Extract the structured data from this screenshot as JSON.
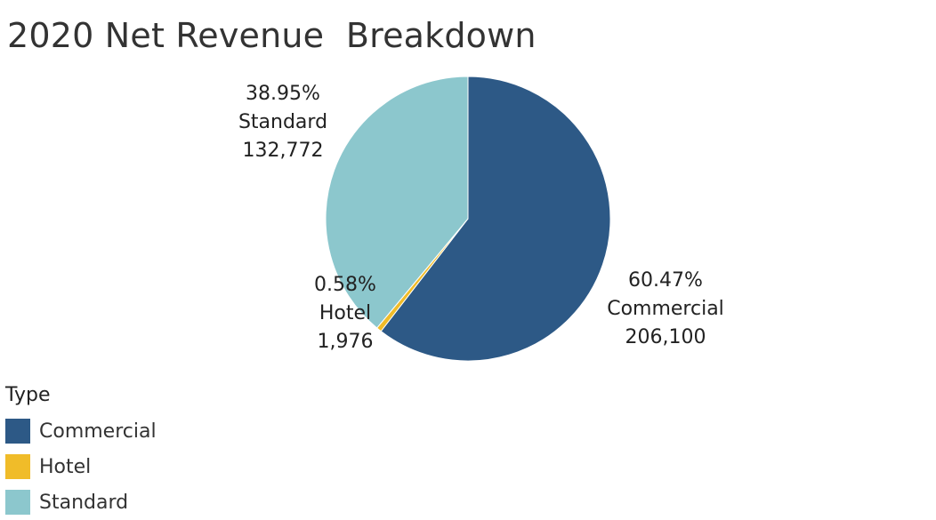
{
  "chart_data": {
    "type": "pie",
    "title": "2020 Net Revenue  Breakdown",
    "legend_title": "Type",
    "legend_placement": "bottom-left",
    "slices": [
      {
        "name": "Commercial",
        "value": 206100,
        "value_label": "206,100",
        "percent_label": "60.47%",
        "color": "#2d5986"
      },
      {
        "name": "Hotel",
        "value": 1976,
        "value_label": "1,976",
        "percent_label": "0.58%",
        "color": "#f0bc29"
      },
      {
        "name": "Standard",
        "value": 132772,
        "value_label": "132,772",
        "percent_label": "38.95%",
        "color": "#8cc7cd"
      }
    ]
  }
}
